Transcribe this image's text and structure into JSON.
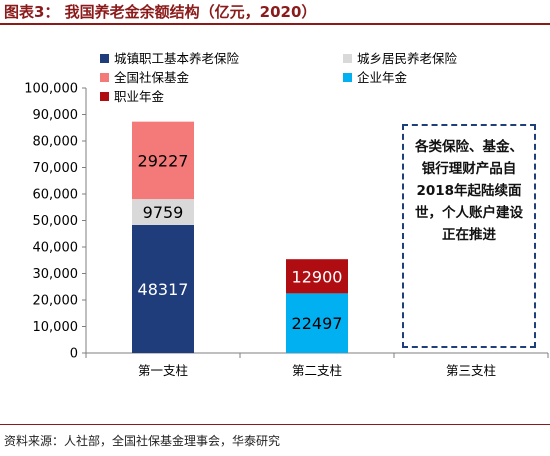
{
  "title": "图表3：  我国养老金余额结构（亿元，2020）",
  "source": "资料来源：人社部，全国社保基金理事会，华泰研究",
  "annotation": "各类保险、基金、银行理财产品自2018年起陆续面世，个人账户建设正在推进",
  "chart_data": {
    "type": "bar",
    "stacked": true,
    "categories": [
      "第一支柱",
      "第二支柱",
      "第三支柱"
    ],
    "ylim": [
      0,
      100000
    ],
    "yticks": [
      "0",
      "10,000",
      "20,000",
      "30,000",
      "40,000",
      "50,000",
      "60,000",
      "70,000",
      "80,000",
      "90,000",
      "100,000"
    ],
    "grid": false,
    "legend_placement": "top",
    "series": [
      {
        "name": "城镇职工基本养老保险",
        "color": "#1F3D7A",
        "label_color": "#ffffff",
        "values": [
          48317,
          null,
          null
        ]
      },
      {
        "name": "城乡居民养老保险",
        "color": "#D9D9D9",
        "label_color": "#000000",
        "values": [
          9759,
          null,
          null
        ]
      },
      {
        "name": "全国社保基金",
        "color": "#F47A7A",
        "label_color": "#000000",
        "values": [
          29227,
          null,
          null
        ]
      },
      {
        "name": "企业年金",
        "color": "#00B0F0",
        "label_color": "#000000",
        "values": [
          null,
          22497,
          null
        ]
      },
      {
        "name": "职业年金",
        "color": "#B00D12",
        "label_color": "#ffffff",
        "values": [
          null,
          12900,
          null
        ]
      }
    ]
  }
}
